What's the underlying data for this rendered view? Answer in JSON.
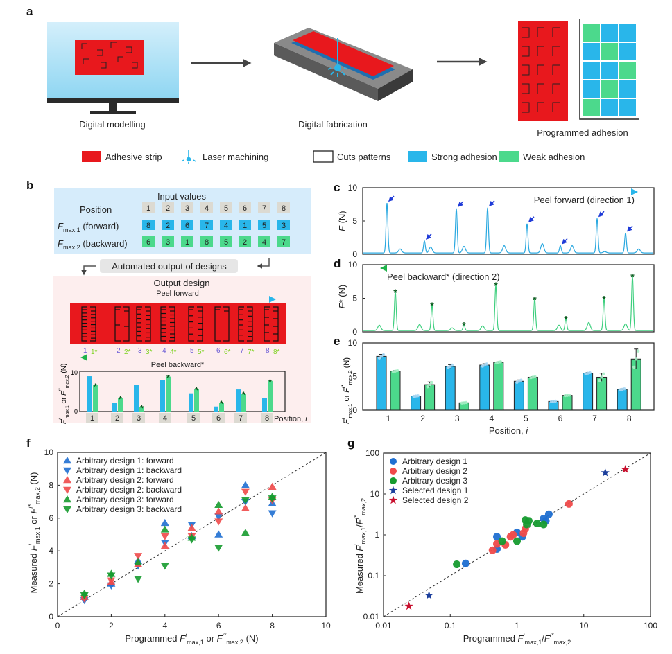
{
  "panel_labels": {
    "a": "a",
    "b": "b",
    "c": "c",
    "d": "d",
    "e": "e",
    "f": "f",
    "g": "g"
  },
  "colors": {
    "adhesive": "#e8181d",
    "strong": "#29b6ea",
    "weak": "#4cd98c",
    "design1": "#1f6fd1",
    "design2": "#f04a4a",
    "design3": "#169b2f",
    "selected1": "#1c3f9c",
    "selected2": "#c8102e"
  },
  "panel_a": {
    "step1": "Digital modelling",
    "step2": "Digital fabrication",
    "step3": "Programmed adhesion",
    "legend": [
      {
        "label": "Adhesive strip",
        "icon": "red-square"
      },
      {
        "label": "Laser machining",
        "icon": "laser-icon"
      },
      {
        "label": "Cuts patterns",
        "icon": "cut-square"
      },
      {
        "label": "Strong adhesion",
        "icon": "blue-square"
      },
      {
        "label": "Weak adhesion",
        "icon": "green-square"
      }
    ],
    "adhesion_grid": [
      [
        "weak",
        "strong",
        "strong"
      ],
      [
        "strong",
        "weak",
        "strong"
      ],
      [
        "strong",
        "strong",
        "weak"
      ],
      [
        "strong",
        "weak",
        "strong"
      ],
      [
        "weak",
        "strong",
        "strong"
      ]
    ]
  },
  "panel_b": {
    "input_title": "Input values",
    "position_label": "Position",
    "fmax1_label": [
      [
        "F",
        "i"
      ],
      [
        "max,1",
        "sub"
      ],
      [
        " (forward)",
        "n"
      ]
    ],
    "fmax2_label": [
      [
        "F",
        "i"
      ],
      [
        "max,2",
        "sub"
      ],
      [
        " (backward)",
        "n"
      ]
    ],
    "positions": [
      "1",
      "2",
      "3",
      "4",
      "5",
      "6",
      "7",
      "8"
    ],
    "fmax1": [
      "8",
      "2",
      "6",
      "7",
      "4",
      "1",
      "5",
      "3"
    ],
    "fmax2": [
      "6",
      "3",
      "1",
      "8",
      "5",
      "2",
      "4",
      "7"
    ],
    "automated": "Automated output of designs",
    "output_title": "Output design",
    "peel_forward": "Peel forward",
    "peel_backward": "Peel backward*",
    "strip_labels": [
      [
        "1",
        "1*"
      ],
      [
        "2",
        "2*"
      ],
      [
        "3",
        "3*"
      ],
      [
        "4",
        "4*"
      ],
      [
        "5",
        "5*"
      ],
      [
        "6",
        "6*"
      ],
      [
        "7",
        "7*"
      ],
      [
        "8",
        "8*"
      ]
    ],
    "mini_chart": {
      "ylabel": [
        [
          "F",
          "i"
        ],
        [
          "i",
          "sup"
        ],
        [
          "max,1",
          "sub"
        ],
        [
          " or ",
          "n"
        ],
        [
          "F",
          "i"
        ],
        [
          "i*",
          "sup"
        ],
        [
          "max,2",
          "sub"
        ],
        [
          " (N)",
          "n"
        ]
      ],
      "yticks": [
        "0",
        "10"
      ],
      "xlabel": [
        [
          "Position, ",
          "n"
        ],
        [
          "i",
          "i"
        ]
      ],
      "forward": [
        9.1,
        2.3,
        6.9,
        8.1,
        4.7,
        1.3,
        5.7,
        3.5
      ],
      "backward": [
        6.8,
        3.5,
        1.2,
        9.0,
        5.8,
        2.3,
        4.6,
        7.9
      ],
      "marker": "*"
    }
  },
  "chart_data": [
    {
      "id": "c",
      "type": "line",
      "ylabel": [
        [
          "F",
          "i"
        ],
        [
          " (N)",
          "n"
        ]
      ],
      "yticks": [
        "0",
        "5",
        "10"
      ],
      "ylim": [
        0,
        10
      ],
      "annotation": "Peel forward (direction 1)",
      "marked_peaks": [
        7.7,
        2.0,
        6.9,
        7.0,
        4.6,
        1.3,
        5.4,
        3.2
      ],
      "minor_peaks": [
        0.8,
        1.1,
        1.2,
        1.3,
        1.6,
        1.3,
        0.4,
        0.8
      ]
    },
    {
      "id": "d",
      "type": "line",
      "ylabel": [
        [
          "F",
          "i"
        ],
        [
          "*",
          "n"
        ],
        [
          " (N)",
          "n"
        ]
      ],
      "yticks": [
        "0",
        "5",
        "10"
      ],
      "ylim": [
        0,
        10
      ],
      "annotation": "Peel backward* (direction 2)",
      "marker": "*",
      "marked_peaks": [
        6.0,
        4.0,
        1.1,
        7.0,
        4.9,
        2.0,
        5.0,
        8.3
      ],
      "minor_peaks": [
        1.0,
        1.1,
        0.6,
        0.9,
        1.0,
        1.4,
        1.2
      ]
    },
    {
      "id": "e",
      "type": "bar",
      "categories": [
        "1",
        "2",
        "3",
        "4",
        "5",
        "6",
        "7",
        "8"
      ],
      "ylim": [
        0,
        10
      ],
      "yticks": [
        "0",
        "5",
        "10"
      ],
      "ylabel": [
        [
          "F",
          "i"
        ],
        [
          "i",
          "sup"
        ],
        [
          "max,1",
          "sub"
        ],
        [
          " or ",
          "n"
        ],
        [
          "F",
          "i"
        ],
        [
          "i*",
          "sup"
        ],
        [
          "max,2",
          "sub"
        ],
        [
          " (N)",
          "n"
        ]
      ],
      "xlabel": [
        [
          "Position, ",
          "n"
        ],
        [
          "i",
          "i"
        ]
      ],
      "series": [
        {
          "values": [
            8.0,
            2.1,
            6.5,
            6.7,
            4.3,
            1.3,
            5.5,
            3.1
          ],
          "err": [
            0.3,
            0.05,
            0.25,
            0.2,
            0.2,
            0.05,
            0.1,
            0.1
          ]
        },
        {
          "values": [
            5.8,
            3.8,
            1.1,
            7.1,
            4.9,
            2.2,
            4.9,
            7.6
          ],
          "err": [
            0.1,
            0.4,
            0.05,
            0.1,
            0.1,
            0.05,
            0.6,
            1.5
          ]
        }
      ]
    },
    {
      "id": "f",
      "type": "scatter",
      "xlim": [
        0,
        10
      ],
      "ylim": [
        0,
        10
      ],
      "xticks": [
        "0",
        "2",
        "4",
        "6",
        "8",
        "10"
      ],
      "yticks": [
        "0",
        "2",
        "4",
        "6",
        "8",
        "10"
      ],
      "xlabel": [
        [
          "Programmed ",
          "n"
        ],
        [
          "F",
          "i"
        ],
        [
          "i",
          "sup"
        ],
        [
          "max,1",
          "sub"
        ],
        [
          " or ",
          "n"
        ],
        [
          "F",
          "i"
        ],
        [
          "i*",
          "sup"
        ],
        [
          "max,2",
          "sub"
        ],
        [
          " (N)",
          "n"
        ]
      ],
      "ylabel": [
        [
          "Measured ",
          "n"
        ],
        [
          "F",
          "i"
        ],
        [
          "i",
          "sup"
        ],
        [
          "max,1",
          "sub"
        ],
        [
          " or ",
          "n"
        ],
        [
          "F",
          "i"
        ],
        [
          "i*",
          "sup"
        ],
        [
          "max,2",
          "sub"
        ],
        [
          " (N)",
          "n"
        ]
      ],
      "x": [
        8,
        2,
        6,
        7,
        4,
        1,
        5,
        3
      ],
      "legend": "top-left",
      "reference_line": "y = x",
      "series": [
        {
          "name": "Arbitrary design 1: forward",
          "marker": "triangle-up",
          "color": "#1f6fd1",
          "x": [
            1,
            2,
            3,
            4,
            5,
            6,
            7,
            8
          ],
          "y": [
            1.2,
            2.0,
            3.4,
            5.7,
            4.9,
            5.0,
            8.0,
            6.9
          ]
        },
        {
          "name": "Arbitrary design 1: backward",
          "marker": "triangle-down",
          "color": "#1f6fd1",
          "x": [
            1,
            2,
            3,
            4,
            5,
            6,
            7,
            8
          ],
          "y": [
            1.0,
            1.9,
            3.1,
            4.5,
            5.6,
            6.1,
            7.0,
            6.3
          ]
        },
        {
          "name": "Arbitrary design 2: forward",
          "marker": "triangle-up",
          "color": "#f04a4a",
          "x": [
            1,
            2,
            3,
            4,
            5,
            6,
            7,
            8
          ],
          "y": [
            1.2,
            2.1,
            3.2,
            4.3,
            5.4,
            6.4,
            6.6,
            7.9
          ]
        },
        {
          "name": "Arbitrary design 2: backward",
          "marker": "triangle-down",
          "color": "#f04a4a",
          "x": [
            1,
            2,
            3,
            4,
            5,
            6,
            7,
            8
          ],
          "y": [
            1.1,
            2.2,
            3.7,
            4.9,
            4.9,
            5.8,
            7.6,
            7.1
          ]
        },
        {
          "name": "Arbitrary design 3: forward",
          "marker": "triangle-up",
          "color": "#169b2f",
          "x": [
            1,
            2,
            3,
            4,
            5,
            6,
            7,
            8
          ],
          "y": [
            1.4,
            2.6,
            3.3,
            5.3,
            4.8,
            6.8,
            5.1,
            7.3
          ]
        },
        {
          "name": "Arbitrary design 3: backward",
          "marker": "triangle-down",
          "color": "#169b2f",
          "x": [
            1,
            2,
            3,
            4,
            5,
            6,
            7,
            8
          ],
          "y": [
            1.3,
            2.5,
            2.3,
            3.1,
            4.7,
            4.2,
            7.1,
            7.2
          ]
        }
      ]
    },
    {
      "id": "g",
      "type": "scatter",
      "xscale": "log",
      "yscale": "log",
      "xlim": [
        0.01,
        100
      ],
      "ylim": [
        0.01,
        100
      ],
      "xticks": [
        "0.01",
        "0.1",
        "1",
        "10",
        "100"
      ],
      "yticks": [
        "0.01",
        "0.1",
        "1",
        "10",
        "100"
      ],
      "xlabel": [
        [
          "Programmed ",
          "n"
        ],
        [
          "F",
          "i"
        ],
        [
          "i",
          "sup"
        ],
        [
          "max,1",
          "sub"
        ],
        [
          "/",
          "n"
        ],
        [
          "F",
          "i"
        ],
        [
          "i*",
          "sup"
        ],
        [
          "max,2",
          "sub"
        ]
      ],
      "ylabel": [
        [
          "Measured ",
          "n"
        ],
        [
          "F",
          "i"
        ],
        [
          "i",
          "sup"
        ],
        [
          "max,1",
          "sub"
        ],
        [
          "/",
          "n"
        ],
        [
          "F",
          "i"
        ],
        [
          "i*",
          "sup"
        ],
        [
          "max,2",
          "sub"
        ]
      ],
      "legend": "top-left",
      "reference_line": "y = x",
      "series": [
        {
          "name": "Arbitrary design 1",
          "marker": "circle",
          "color": "#1f6fd1",
          "x": [
            0.17,
            0.5,
            0.5,
            1,
            1.2,
            2.5,
            2.7,
            3
          ],
          "y": [
            0.2,
            0.45,
            0.9,
            1.15,
            0.9,
            2.5,
            2.2,
            3.2
          ]
        },
        {
          "name": "Arbitrary design 2",
          "marker": "circle",
          "color": "#f04a4a",
          "x": [
            0.43,
            0.5,
            0.67,
            0.8,
            0.875,
            1.25,
            1.33,
            6
          ],
          "y": [
            0.42,
            0.6,
            0.57,
            0.9,
            1.0,
            1.1,
            1.4,
            5.7
          ]
        },
        {
          "name": "Arbitrary design 3",
          "marker": "circle",
          "color": "#169b2f",
          "x": [
            0.125,
            0.6,
            1,
            1.33,
            1.4,
            1.5,
            2,
            2.5
          ],
          "y": [
            0.19,
            0.7,
            0.7,
            2.3,
            1.8,
            2.2,
            1.9,
            1.8
          ]
        },
        {
          "name": "Selected design 1",
          "marker": "star",
          "color": "#1c3f9c",
          "x": [
            0.048,
            21
          ],
          "y": [
            0.033,
            33
          ]
        },
        {
          "name": "Selected design 2",
          "marker": "star",
          "color": "#c8102e",
          "x": [
            0.024,
            42
          ],
          "y": [
            0.018,
            40
          ]
        }
      ]
    }
  ]
}
